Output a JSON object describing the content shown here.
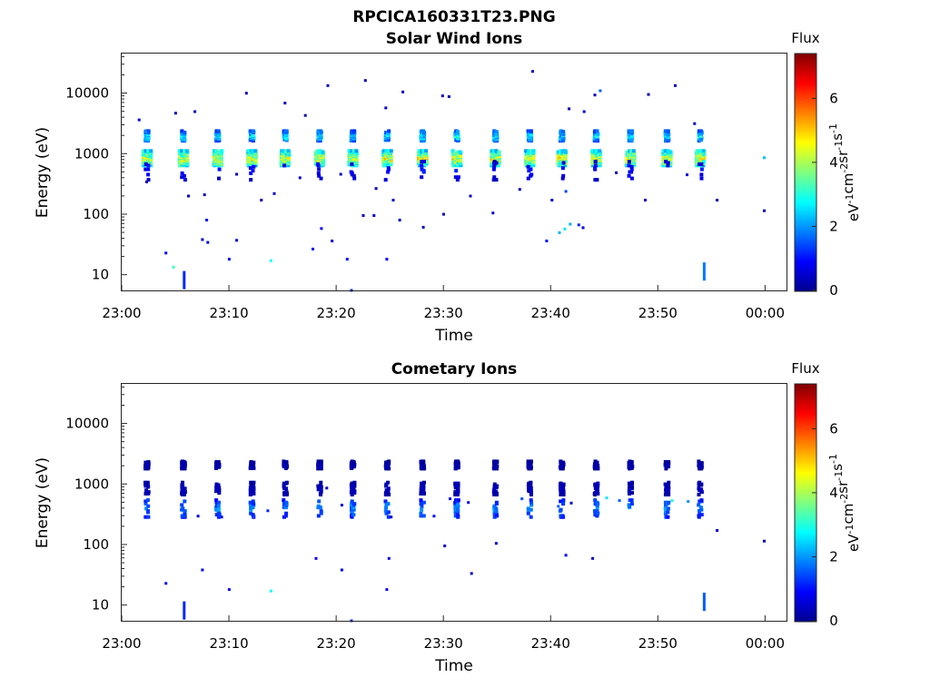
{
  "figure": {
    "filename_title": "RPCICA160331T23.PNG"
  },
  "colormap": "jet",
  "chart_data": [
    {
      "type": "heatmap",
      "title": "Solar Wind Ions",
      "xlabel": "Time",
      "ylabel": "Energy (eV)",
      "x_ticks": [
        "23:00",
        "23:10",
        "23:20",
        "23:30",
        "23:40",
        "23:50",
        "00:00"
      ],
      "x_range_minutes": [
        0,
        62
      ],
      "y_scale": "log",
      "y_ticks": [
        "10",
        "100",
        "1000",
        "10000"
      ],
      "y_range": [
        5.5,
        45000
      ],
      "colorbar": {
        "title": "Flux",
        "unit": "eV-1cm-2sr-1s-1",
        "unit_parts": [
          {
            "t": "eV",
            "sup": "-1"
          },
          {
            "t": "cm",
            "sup": "-2"
          },
          {
            "t": "sr",
            "sup": "-1"
          },
          {
            "t": "s",
            "sup": "-1"
          }
        ],
        "ticks": [
          "0",
          "2",
          "4",
          "6"
        ],
        "range": [
          0,
          7.4
        ]
      },
      "sweep_minutes": [
        2.3,
        5.7,
        8.9,
        12.1,
        15.2,
        18.4,
        21.5,
        24.7,
        28.0,
        31.2,
        34.8,
        38.0,
        41.0,
        44.2,
        47.4,
        50.8,
        53.9
      ],
      "clusters": [
        {
          "energy": 900,
          "spread": 0.12,
          "flux": 4.4,
          "width": 0.9,
          "density": 0.9
        },
        {
          "energy": 2100,
          "spread": 0.08,
          "flux": 2.6,
          "width": 0.55,
          "density": 0.75
        },
        {
          "energy": 560,
          "spread": 0.15,
          "flux": 1.0,
          "width": 0.6,
          "density": 0.18
        }
      ],
      "scatter": [
        [
          1.5,
          3800,
          0.6
        ],
        [
          4.9,
          4900,
          0.4
        ],
        [
          6.7,
          5200,
          0.5
        ],
        [
          11.5,
          10500,
          0.4
        ],
        [
          15.1,
          7200,
          0.5
        ],
        [
          17.0,
          4500,
          0.4
        ],
        [
          19.1,
          14000,
          0.5
        ],
        [
          22.6,
          17000,
          0.4
        ],
        [
          24.5,
          6000,
          0.5
        ],
        [
          26.1,
          11000,
          0.4
        ],
        [
          29.8,
          9500,
          0.5
        ],
        [
          30.4,
          9200,
          0.4
        ],
        [
          38.2,
          24000,
          0.5
        ],
        [
          41.6,
          5800,
          0.4
        ],
        [
          43.0,
          5200,
          0.6
        ],
        [
          44.0,
          9800,
          0.5
        ],
        [
          44.5,
          11500,
          1.6
        ],
        [
          49.0,
          10000,
          0.4
        ],
        [
          51.5,
          14000,
          0.5
        ],
        [
          53.3,
          3300,
          0.5
        ],
        [
          2.2,
          360,
          0.4
        ],
        [
          6.1,
          210,
          0.5
        ],
        [
          7.6,
          220,
          0.4
        ],
        [
          10.6,
          480,
          0.5
        ],
        [
          12.9,
          180,
          0.4
        ],
        [
          14.1,
          230,
          0.5
        ],
        [
          16.5,
          420,
          0.4
        ],
        [
          20.3,
          480,
          0.5
        ],
        [
          23.6,
          280,
          0.4
        ],
        [
          25.2,
          180,
          0.6
        ],
        [
          29.9,
          105,
          0.4
        ],
        [
          32.4,
          210,
          0.5
        ],
        [
          37.0,
          270,
          0.4
        ],
        [
          40.0,
          180,
          0.5
        ],
        [
          41.3,
          250,
          1.4
        ],
        [
          46.0,
          510,
          0.4
        ],
        [
          48.7,
          180,
          0.5
        ],
        [
          52.6,
          470,
          0.6
        ],
        [
          55.4,
          180,
          0.4
        ],
        [
          7.8,
          84,
          1.0
        ],
        [
          7.4,
          40,
          0.6
        ],
        [
          7.9,
          36,
          0.7
        ],
        [
          10.6,
          39,
          0.6
        ],
        [
          18.5,
          61,
          0.9
        ],
        [
          19.5,
          38,
          0.6
        ],
        [
          22.4,
          100,
          0.5
        ],
        [
          23.4,
          100,
          0.6
        ],
        [
          25.8,
          84,
          0.5
        ],
        [
          28.0,
          64,
          0.6
        ],
        [
          34.5,
          110,
          0.5
        ],
        [
          39.5,
          38,
          0.9
        ],
        [
          40.7,
          52,
          2.2
        ],
        [
          41.2,
          60,
          2.6
        ],
        [
          41.7,
          72,
          2.2
        ],
        [
          42.5,
          70,
          1.2
        ],
        [
          42.9,
          63,
          0.8
        ],
        [
          59.8,
          120,
          0.4
        ],
        [
          4.0,
          24,
          0.9
        ],
        [
          4.7,
          14,
          3.2
        ],
        [
          9.9,
          19,
          0.8
        ],
        [
          13.8,
          18,
          2.8
        ],
        [
          17.7,
          28,
          1.0
        ],
        [
          20.9,
          19,
          1.0
        ],
        [
          24.6,
          19,
          0.9
        ],
        [
          21.3,
          5.8,
          1.2
        ],
        [
          59.8,
          900,
          2.3
        ]
      ],
      "streaks": [
        [
          5.7,
          7.2,
          1.2
        ],
        [
          54.2,
          10,
          1.8
        ]
      ]
    },
    {
      "type": "heatmap",
      "title": "Cometary Ions",
      "xlabel": "Time",
      "ylabel": "Energy (eV)",
      "x_ticks": [
        "23:00",
        "23:10",
        "23:20",
        "23:30",
        "23:40",
        "23:50",
        "00:00"
      ],
      "x_range_minutes": [
        0,
        62
      ],
      "y_scale": "log",
      "y_ticks": [
        "10",
        "100",
        "1000",
        "10000"
      ],
      "y_range": [
        5.5,
        45000
      ],
      "colorbar": {
        "title": "Flux",
        "unit": "eV-1cm-2sr-1s-1",
        "unit_parts": [
          {
            "t": "eV",
            "sup": "-1"
          },
          {
            "t": "cm",
            "sup": "-2"
          },
          {
            "t": "sr",
            "sup": "-1"
          },
          {
            "t": "s",
            "sup": "-1"
          }
        ],
        "ticks": [
          "0",
          "2",
          "4",
          "6"
        ],
        "range": [
          0,
          7.4
        ]
      },
      "sweep_minutes": [
        2.3,
        5.7,
        8.9,
        12.1,
        15.2,
        18.4,
        21.5,
        24.7,
        28.0,
        31.2,
        34.8,
        38.0,
        41.0,
        44.2,
        47.4,
        50.8,
        53.9
      ],
      "clusters": [
        {
          "energy": 2200,
          "spread": 0.06,
          "flux": 0.35,
          "width": 0.4,
          "density": 0.55
        },
        {
          "energy": 900,
          "spread": 0.1,
          "flux": 0.45,
          "width": 0.5,
          "density": 0.5
        },
        {
          "energy": 420,
          "spread": 0.14,
          "flux": 1.9,
          "width": 0.55,
          "density": 0.35
        }
      ],
      "scatter": [
        [
          7.0,
          310,
          0.8
        ],
        [
          9.2,
          300,
          1.0
        ],
        [
          13.5,
          380,
          1.2
        ],
        [
          20.4,
          470,
          0.7
        ],
        [
          25.0,
          300,
          0.7
        ],
        [
          29.0,
          310,
          1.0
        ],
        [
          32.2,
          520,
          0.8
        ],
        [
          37.2,
          600,
          1.5
        ],
        [
          40.6,
          450,
          1.6
        ],
        [
          45.1,
          620,
          2.6
        ],
        [
          46.3,
          560,
          1.6
        ],
        [
          51.2,
          560,
          3.0
        ],
        [
          52.7,
          540,
          2.0
        ],
        [
          55.4,
          180,
          0.5
        ],
        [
          41.8,
          510,
          0.6
        ],
        [
          30.5,
          600,
          0.7
        ],
        [
          18.0,
          62,
          0.7
        ],
        [
          20.4,
          40,
          0.8
        ],
        [
          24.8,
          62,
          0.6
        ],
        [
          30.0,
          100,
          0.5
        ],
        [
          32.5,
          35,
          0.6
        ],
        [
          34.8,
          110,
          0.6
        ],
        [
          41.3,
          70,
          0.9
        ],
        [
          43.8,
          62,
          0.6
        ],
        [
          59.8,
          120,
          0.4
        ],
        [
          7.4,
          40,
          0.8
        ],
        [
          19.0,
          900,
          0.5
        ],
        [
          4.0,
          24,
          1.0
        ],
        [
          9.9,
          19,
          0.8
        ],
        [
          13.8,
          18,
          2.8
        ],
        [
          24.6,
          19,
          0.9
        ],
        [
          21.3,
          5.8,
          1.2
        ]
      ],
      "streaks": [
        [
          5.7,
          7.2,
          1.2
        ],
        [
          54.2,
          10,
          1.6
        ]
      ]
    }
  ]
}
